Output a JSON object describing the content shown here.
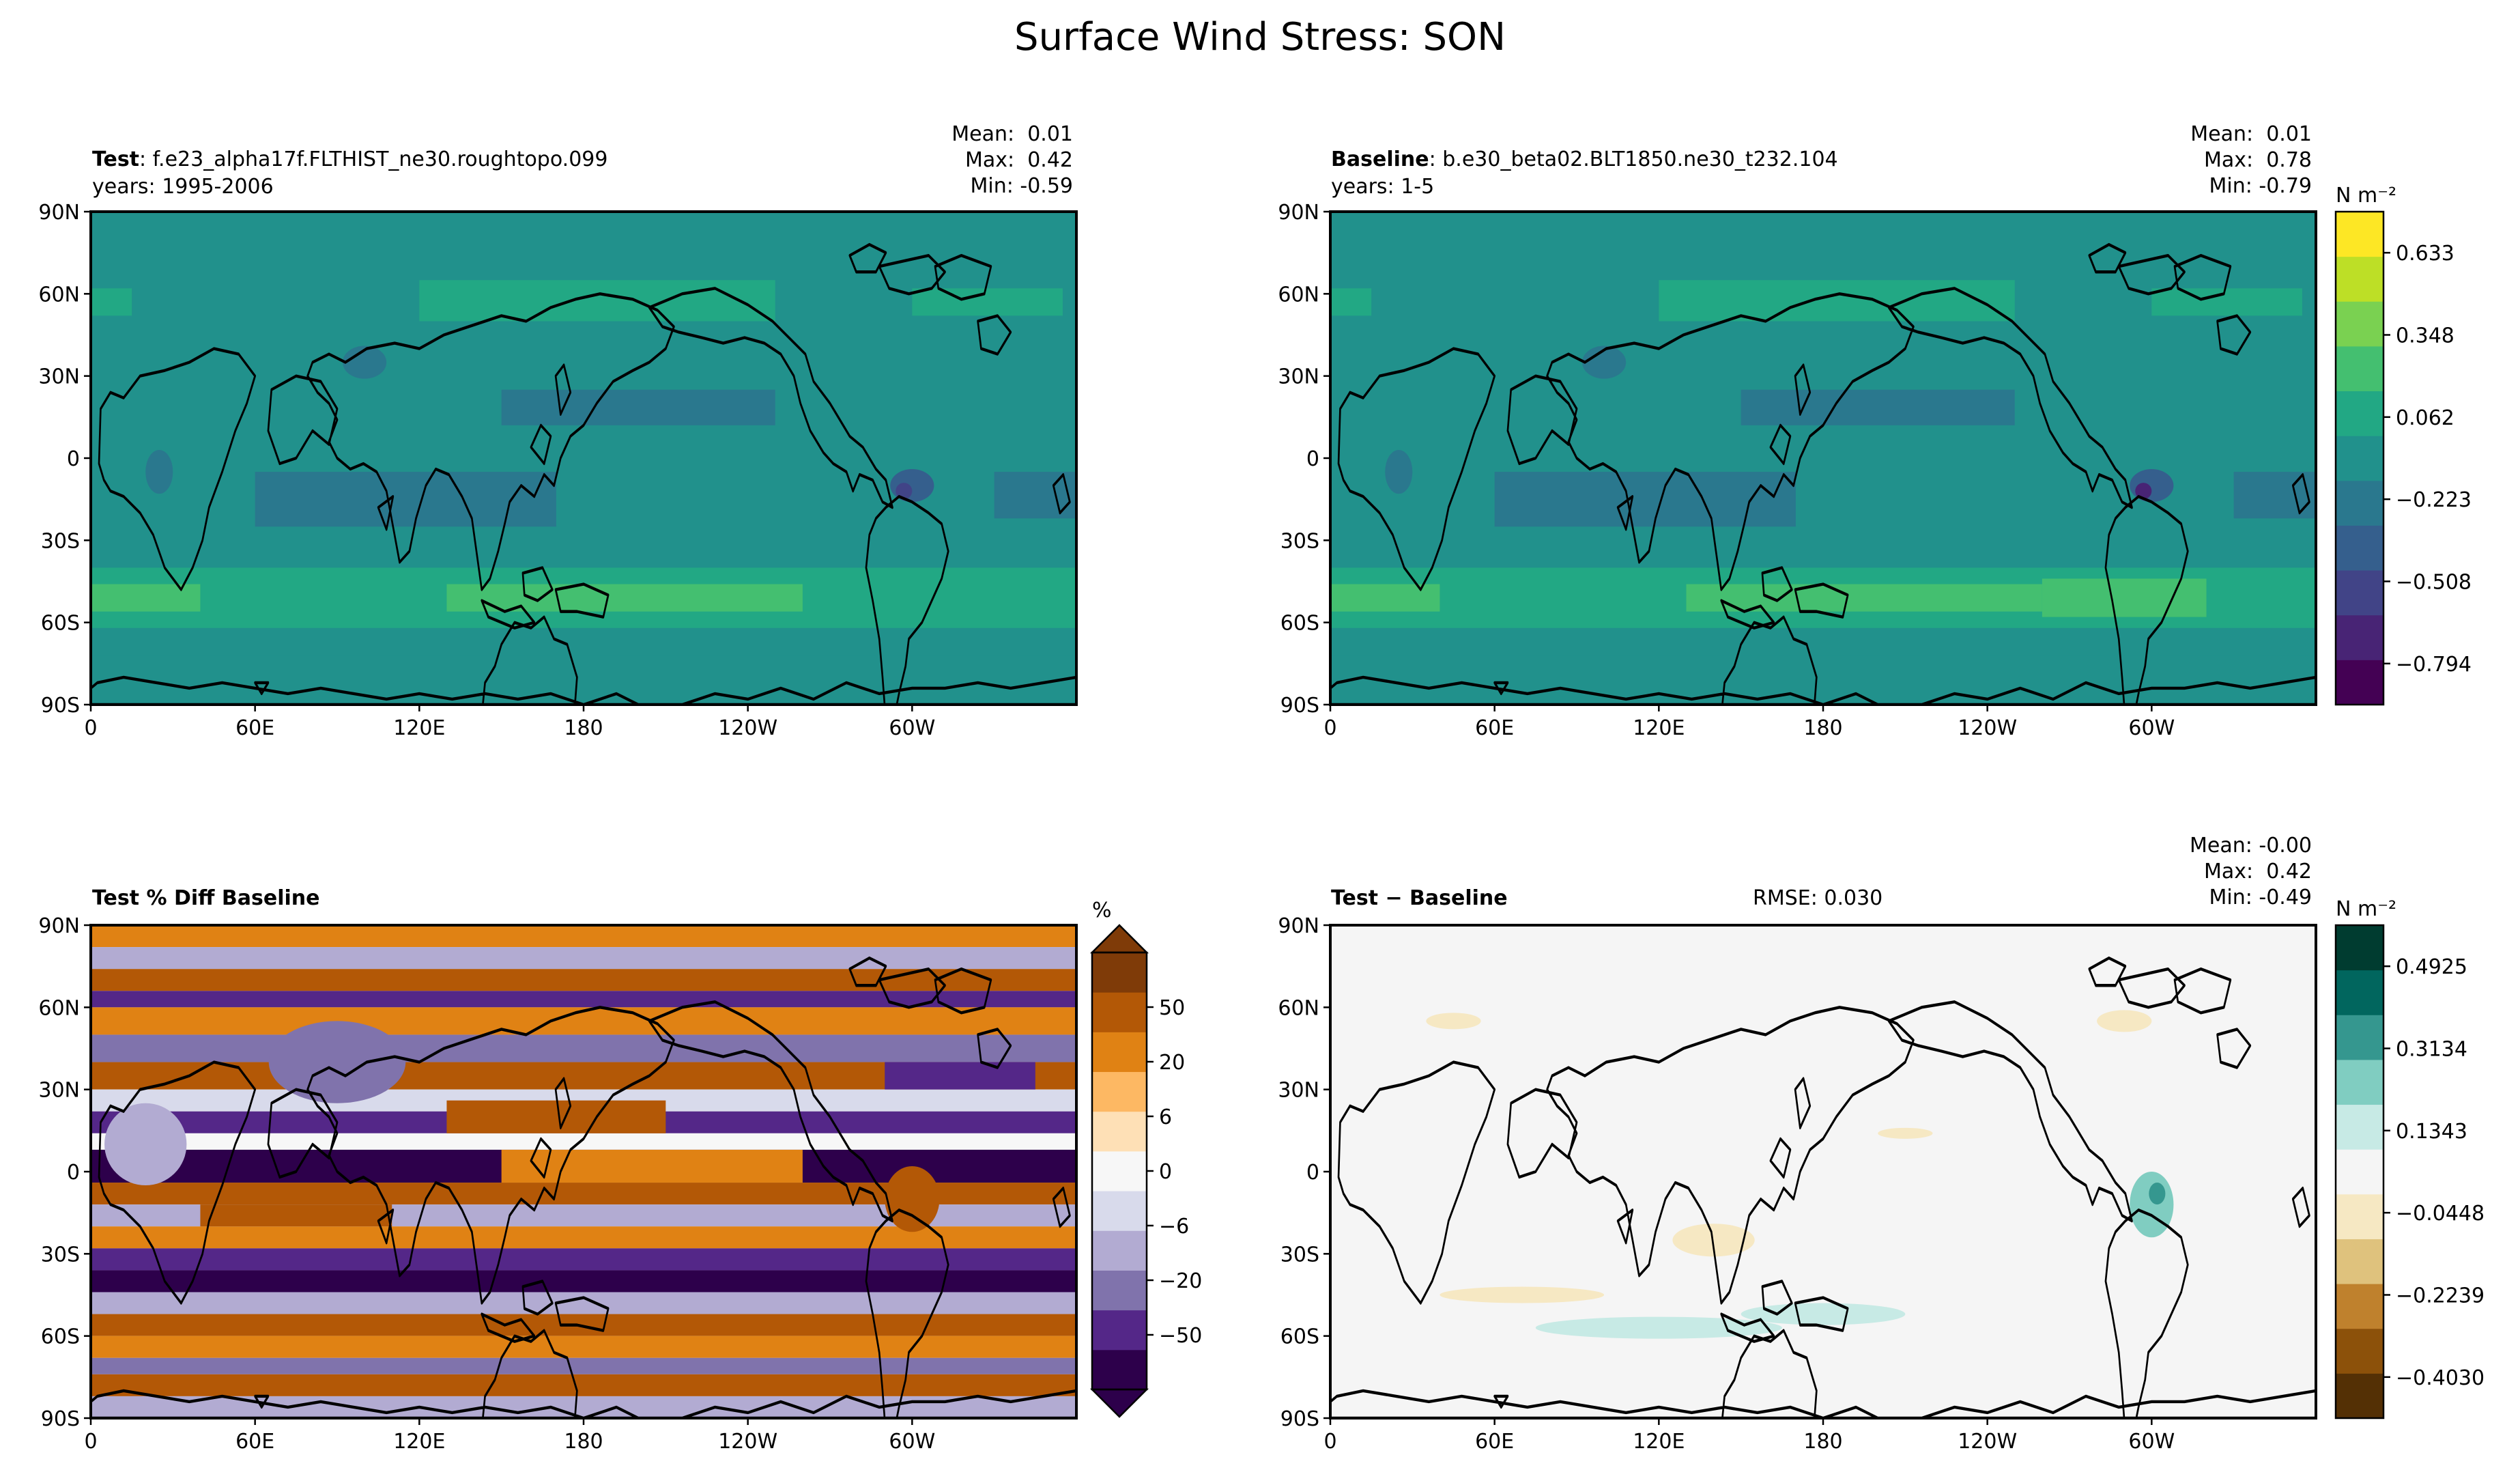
{
  "figure_title": "Surface Wind Stress: SON",
  "colors": {
    "viridis_levels": [
      "#440154",
      "#482475",
      "#414487",
      "#355f8d",
      "#2a788e",
      "#21918c",
      "#22a884",
      "#44bf70",
      "#7ad151",
      "#bddf26",
      "#fde725"
    ],
    "diff_levels": [
      "#543005",
      "#8c510a",
      "#bf812d",
      "#dfc27d",
      "#f6e8c3",
      "#f5f5f5",
      "#c7eae5",
      "#80cdc1",
      "#35978f",
      "#01665e",
      "#003c30"
    ],
    "pct_levels": [
      "#2d004b",
      "#542788",
      "#8073ac",
      "#b2abd2",
      "#d8daeb",
      "#f7f7f7",
      "#fee0b6",
      "#fdb863",
      "#e08214",
      "#b35806",
      "#7f3b08"
    ],
    "coast": "#000000"
  },
  "panels": {
    "test": {
      "label": "Test",
      "case": ": f.e23_alpha17f.FLTHIST_ne30.roughtopo.099",
      "years": "years: 1995-2006",
      "stats": [
        "Mean:  0.01",
        "Max:  0.42",
        "Min: -0.59"
      ]
    },
    "baseline": {
      "label": "Baseline",
      "case": ": b.e30_beta02.BLT1850.ne30_t232.104",
      "years": "years: 1-5",
      "stats": [
        "Mean:  0.01",
        "Max:  0.78",
        "Min: -0.79"
      ]
    },
    "pctdiff": {
      "label": "Test % Diff Baseline"
    },
    "diff": {
      "label": "Test − Baseline",
      "rmse": "RMSE: 0.030",
      "stats": [
        "Mean: -0.00",
        "Max:  0.42",
        "Min: -0.49"
      ]
    }
  },
  "axes": {
    "lat_ticks": [
      "90N",
      "60N",
      "30N",
      "0",
      "30S",
      "60S",
      "90S"
    ],
    "lon_ticks": [
      "0",
      "60E",
      "120E",
      "180",
      "120W",
      "60W"
    ]
  },
  "colorbars": {
    "field": {
      "unit": "N m⁻²",
      "ticks": [
        "0.633",
        "0.348",
        "0.062",
        "−0.223",
        "−0.508",
        "−0.794"
      ]
    },
    "pct": {
      "unit": "%",
      "ticks": [
        "50",
        "20",
        "6",
        "0",
        "−6",
        "−20",
        "−50"
      ]
    },
    "diff": {
      "unit": "N m⁻²",
      "ticks": [
        "0.4925",
        "0.3134",
        "0.1343",
        "−0.0448",
        "−0.2239",
        "−0.4030"
      ]
    }
  },
  "chart_data": {
    "type": "heatmap",
    "title": "Surface Wind Stress: SON",
    "projection": "PlateCarree, central longitude 180",
    "xlim": [
      0,
      360
    ],
    "ylim": [
      -90,
      90
    ],
    "panels": [
      {
        "name": "Test",
        "units": "N m-2",
        "mean": 0.01,
        "max": 0.42,
        "min": -0.59,
        "levels": [
          -0.794,
          -0.651,
          -0.508,
          -0.366,
          -0.223,
          -0.081,
          0.062,
          0.205,
          0.348,
          0.491,
          0.633,
          0.776
        ]
      },
      {
        "name": "Baseline",
        "units": "N m-2",
        "mean": 0.01,
        "max": 0.78,
        "min": -0.79,
        "levels": [
          -0.794,
          -0.651,
          -0.508,
          -0.366,
          -0.223,
          -0.081,
          0.062,
          0.205,
          0.348,
          0.491,
          0.633,
          0.776
        ]
      },
      {
        "name": "Test % Diff Baseline",
        "units": "%",
        "levels": [
          -50,
          -20,
          -6,
          0,
          6,
          20,
          50
        ]
      },
      {
        "name": "Test - Baseline",
        "units": "N m-2",
        "mean": -0.0,
        "max": 0.42,
        "min": -0.49,
        "rmse": 0.03,
        "levels": [
          -0.4925,
          -0.403,
          -0.3134,
          -0.2239,
          -0.1343,
          -0.0448,
          0.0448,
          0.1343,
          0.2239,
          0.3134,
          0.403,
          0.4925
        ]
      }
    ]
  }
}
